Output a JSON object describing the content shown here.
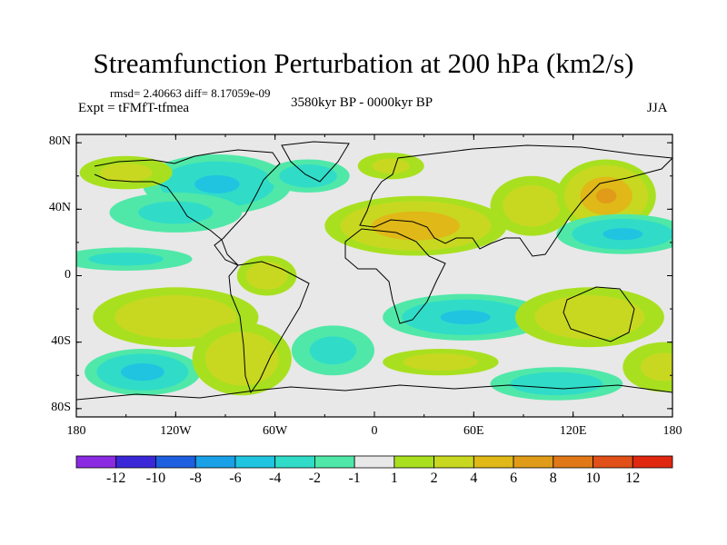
{
  "title": "Streamfunction Perturbation at 200 hPa (km2/s)",
  "stats": "rmsd= 2.40663 diff= 8.17059e-09",
  "experiment": "Expt = tFMfT-tfmea",
  "period": "3580kyr BP - 0000kyr BP",
  "season": "JJA",
  "lat_labels": [
    "80N",
    "40N",
    "0",
    "40S",
    "80S"
  ],
  "lon_labels": [
    "180",
    "120W",
    "60W",
    "0",
    "60E",
    "120E",
    "180"
  ],
  "colorbar": {
    "colors": [
      "#8a2be2",
      "#3a28d8",
      "#1e5fe0",
      "#1aa0e6",
      "#20c4e0",
      "#30dcc8",
      "#50e8a8",
      "#e8e8e8",
      "#a8e020",
      "#c8d820",
      "#e0b818",
      "#e09c18",
      "#e07818",
      "#e05018",
      "#e02810"
    ],
    "labels": [
      "-12",
      "-10",
      "-8",
      "-6",
      "-4",
      "-2",
      "-1",
      "1",
      "2",
      "4",
      "6",
      "8",
      "10",
      "12"
    ]
  },
  "map": {
    "background_color": "#e8e8e8",
    "anomalies": [
      {
        "lon": -95,
        "lat": 55,
        "value": -4,
        "rlon": 45,
        "rlat": 18
      },
      {
        "lon": -40,
        "lat": 60,
        "value": -3,
        "rlon": 25,
        "rlat": 10
      },
      {
        "lon": -150,
        "lat": 62,
        "value": 2,
        "rlon": 28,
        "rlat": 10
      },
      {
        "lon": 10,
        "lat": 66,
        "value": 2,
        "rlon": 20,
        "rlat": 8
      },
      {
        "lon": -120,
        "lat": 38,
        "value": -2,
        "rlon": 40,
        "rlat": 12
      },
      {
        "lon": 25,
        "lat": 30,
        "value": 5.5,
        "rlon": 55,
        "rlat": 18
      },
      {
        "lon": 95,
        "lat": 42,
        "value": 3,
        "rlon": 25,
        "rlat": 18
      },
      {
        "lon": 140,
        "lat": 48,
        "value": 6,
        "rlon": 30,
        "rlat": 22
      },
      {
        "lon": 150,
        "lat": 25,
        "value": -4,
        "rlon": 40,
        "rlat": 12
      },
      {
        "lon": -150,
        "lat": 10,
        "value": -2,
        "rlon": 40,
        "rlat": 7
      },
      {
        "lon": -65,
        "lat": 0,
        "value": 3,
        "rlon": 18,
        "rlat": 12
      },
      {
        "lon": 55,
        "lat": -25,
        "value": -4,
        "rlon": 50,
        "rlat": 14
      },
      {
        "lon": 130,
        "lat": -25,
        "value": 3.5,
        "rlon": 45,
        "rlat": 18
      },
      {
        "lon": -120,
        "lat": -25,
        "value": 3.5,
        "rlon": 50,
        "rlat": 18
      },
      {
        "lon": -140,
        "lat": -58,
        "value": -4.5,
        "rlon": 35,
        "rlat": 14
      },
      {
        "lon": -80,
        "lat": -50,
        "value": 3.5,
        "rlon": 30,
        "rlat": 22
      },
      {
        "lon": -25,
        "lat": -45,
        "value": -2,
        "rlon": 25,
        "rlat": 15
      },
      {
        "lon": 40,
        "lat": -52,
        "value": 2.5,
        "rlon": 35,
        "rlat": 8
      },
      {
        "lon": 110,
        "lat": -65,
        "value": -3,
        "rlon": 40,
        "rlat": 10
      },
      {
        "lon": 175,
        "lat": -55,
        "value": 2,
        "rlon": 25,
        "rlat": 15
      }
    ]
  }
}
